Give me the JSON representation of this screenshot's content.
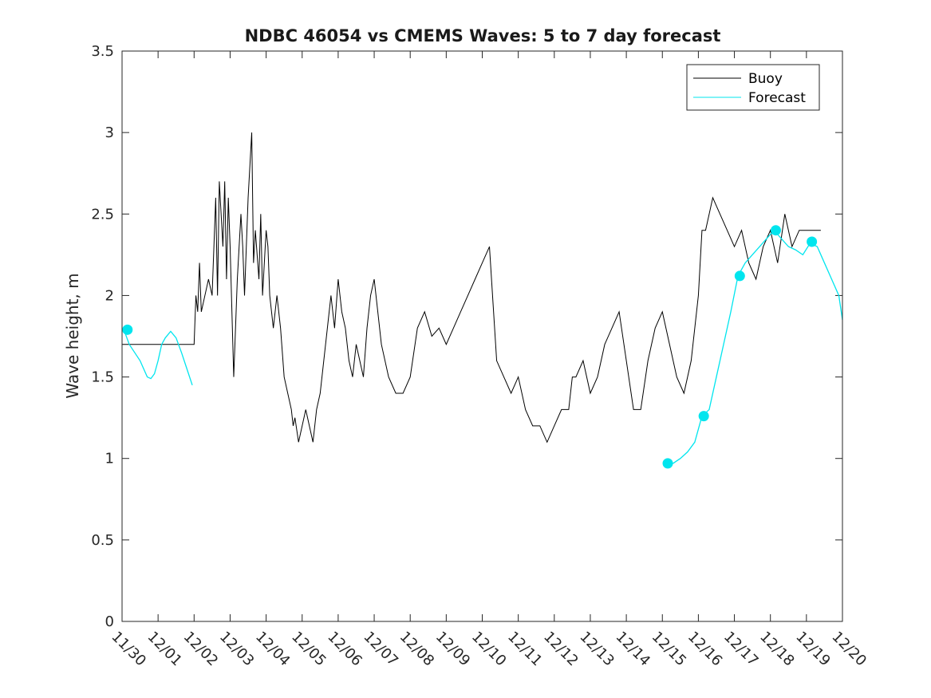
{
  "chart_data": {
    "type": "line",
    "title": "NDBC 46054 vs CMEMS Waves: 5 to 7 day forecast",
    "xlabel": "",
    "ylabel": "Wave height, m",
    "xlim": [
      0,
      20
    ],
    "ylim": [
      0,
      3.5
    ],
    "x_tick_values": [
      0,
      1,
      2,
      3,
      4,
      5,
      6,
      7,
      8,
      9,
      10,
      11,
      12,
      13,
      14,
      15,
      16,
      17,
      18,
      19,
      20
    ],
    "x_tick_labels": [
      "11/30",
      "12/01",
      "12/02",
      "12/03",
      "12/04",
      "12/05",
      "12/06",
      "12/07",
      "12/08",
      "12/09",
      "12/10",
      "12/11",
      "12/12",
      "12/13",
      "12/14",
      "12/15",
      "12/16",
      "12/17",
      "12/18",
      "12/19",
      "12/20"
    ],
    "y_tick_values": [
      0,
      0.5,
      1,
      1.5,
      2,
      2.5,
      3,
      3.5
    ],
    "y_tick_labels": [
      "0",
      "0.5",
      "1",
      "1.5",
      "2",
      "2.5",
      "3",
      "3.5"
    ],
    "legend": {
      "position": "top-right",
      "entries": [
        "Buoy",
        "Forecast"
      ]
    },
    "colors": {
      "buoy": "#000000",
      "forecast": "#00e5ee"
    },
    "series": [
      {
        "name": "Buoy",
        "x": [
          0,
          2,
          2.05,
          2.1,
          2.15,
          2.2,
          2.3,
          2.4,
          2.5,
          2.6,
          2.65,
          2.7,
          2.8,
          2.85,
          2.9,
          2.95,
          3.0,
          3.05,
          3.1,
          3.2,
          3.3,
          3.35,
          3.4,
          3.5,
          3.6,
          3.65,
          3.7,
          3.8,
          3.85,
          3.9,
          4.0,
          4.05,
          4.1,
          4.15,
          4.2,
          4.3,
          4.4,
          4.5,
          4.6,
          4.7,
          4.75,
          4.8,
          4.9,
          5.0,
          5.1,
          5.2,
          5.3,
          5.4,
          5.5,
          5.6,
          5.7,
          5.8,
          5.9,
          6.0,
          6.1,
          6.2,
          6.3,
          6.4,
          6.5,
          6.6,
          6.7,
          6.8,
          6.9,
          7.0,
          7.2,
          7.4,
          7.6,
          7.8,
          8.0,
          8.2,
          8.4,
          8.6,
          8.8,
          9.0,
          9.2,
          9.4,
          9.6,
          9.8,
          10.0,
          10.2,
          10.4,
          10.6,
          10.8,
          11.0,
          11.2,
          11.4,
          11.6,
          11.8,
          12.0,
          12.2,
          12.4,
          12.5,
          12.6,
          12.8,
          13.0,
          13.2,
          13.4,
          13.6,
          13.8,
          14.0,
          14.2,
          14.4,
          14.6,
          14.8,
          15.0,
          15.2,
          15.4,
          15.6,
          15.8,
          16.0,
          16.1,
          16.2,
          16.4,
          16.6,
          16.8,
          17.0,
          17.2,
          17.4,
          17.6,
          17.8,
          18.0,
          18.2,
          18.4,
          18.6,
          18.8,
          19.0,
          19.2,
          19.4
        ],
        "y": [
          1.7,
          1.7,
          2.0,
          1.9,
          2.2,
          1.9,
          2.0,
          2.1,
          2.0,
          2.6,
          2.0,
          2.7,
          2.3,
          2.7,
          2.1,
          2.6,
          2.3,
          1.9,
          1.5,
          2.1,
          2.5,
          2.3,
          2.0,
          2.6,
          3.0,
          2.2,
          2.4,
          2.1,
          2.5,
          2.0,
          2.4,
          2.3,
          2.0,
          1.9,
          1.8,
          2.0,
          1.8,
          1.5,
          1.4,
          1.3,
          1.2,
          1.25,
          1.1,
          1.2,
          1.3,
          1.2,
          1.1,
          1.3,
          1.4,
          1.6,
          1.8,
          2.0,
          1.8,
          2.1,
          1.9,
          1.8,
          1.6,
          1.5,
          1.7,
          1.6,
          1.5,
          1.8,
          2.0,
          2.1,
          1.7,
          1.5,
          1.4,
          1.4,
          1.5,
          1.8,
          1.9,
          1.75,
          1.8,
          1.7,
          1.8,
          1.9,
          2.0,
          2.1,
          2.2,
          2.3,
          1.6,
          1.5,
          1.4,
          1.5,
          1.3,
          1.2,
          1.2,
          1.1,
          1.2,
          1.3,
          1.3,
          1.5,
          1.5,
          1.6,
          1.4,
          1.5,
          1.7,
          1.8,
          1.9,
          1.6,
          1.3,
          1.3,
          1.6,
          1.8,
          1.9,
          1.7,
          1.5,
          1.4,
          1.6,
          2.0,
          2.4,
          2.4,
          2.6,
          2.5,
          2.4,
          2.3,
          2.4,
          2.2,
          2.1,
          2.3,
          2.4,
          2.2,
          2.5,
          2.3,
          2.4,
          2.4,
          2.4,
          2.4
        ]
      },
      {
        "name": "Forecast",
        "x": [
          0.05,
          0.2,
          0.35,
          0.5,
          0.6,
          0.7,
          0.8,
          0.9,
          1.0,
          1.1,
          1.2,
          1.35,
          1.5,
          1.65,
          1.8,
          1.95,
          15.1,
          15.3,
          15.5,
          15.7,
          15.9,
          16.1,
          16.3,
          16.5,
          16.7,
          16.9,
          17.1,
          17.3,
          17.5,
          17.7,
          17.9,
          18.1,
          18.3,
          18.5,
          18.7,
          18.9,
          19.1,
          19.3,
          19.5,
          19.7,
          19.9,
          20.0
        ],
        "y": [
          1.79,
          1.7,
          1.65,
          1.6,
          1.55,
          1.5,
          1.49,
          1.52,
          1.6,
          1.7,
          1.74,
          1.78,
          1.74,
          1.65,
          1.55,
          1.45,
          0.97,
          0.97,
          1.0,
          1.04,
          1.1,
          1.26,
          1.3,
          1.5,
          1.7,
          1.9,
          2.12,
          2.2,
          2.25,
          2.3,
          2.35,
          2.4,
          2.35,
          2.3,
          2.28,
          2.25,
          2.32,
          2.3,
          2.2,
          2.1,
          2.0,
          1.85
        ],
        "markers": [
          {
            "x": 0.15,
            "y": 1.79
          },
          {
            "x": 15.15,
            "y": 0.97
          },
          {
            "x": 16.15,
            "y": 1.26
          },
          {
            "x": 17.15,
            "y": 2.12
          },
          {
            "x": 18.15,
            "y": 2.4
          },
          {
            "x": 19.15,
            "y": 2.33
          }
        ]
      }
    ]
  }
}
